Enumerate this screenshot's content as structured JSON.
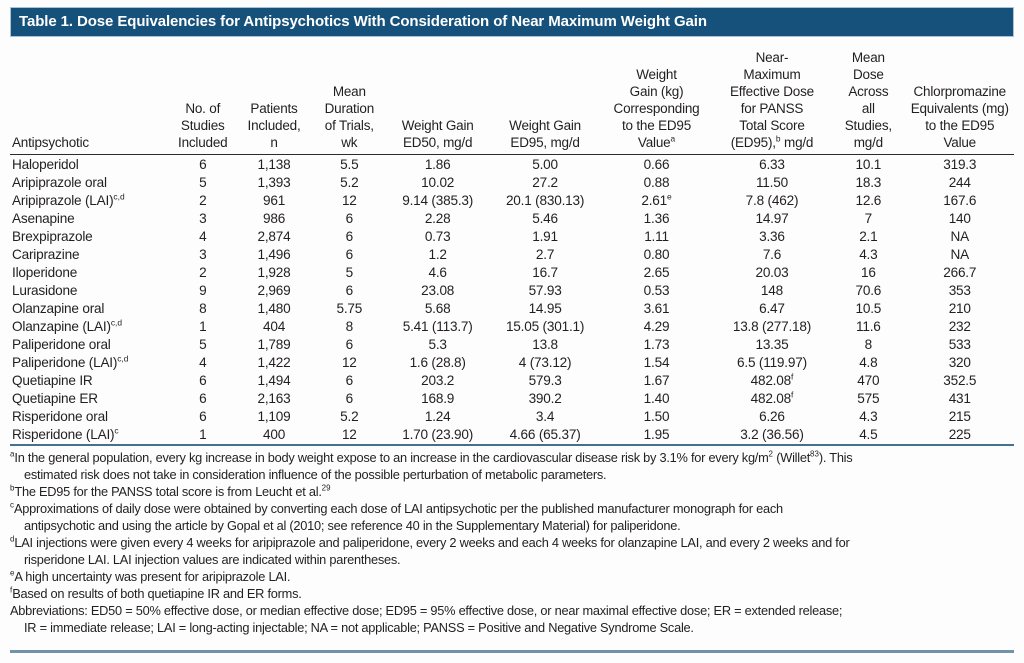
{
  "colors": {
    "title_bg": "#15517a",
    "title_border": "#a9c3d8",
    "title_text": "#ffffff",
    "body_text": "#231f20",
    "rule_dark": "#2b2b2b",
    "rule_blue": "#47708f",
    "bottom_bar": "#7292a7"
  },
  "table": {
    "title": "Table 1. Dose Equivalencies for Antipsychotics With Consideration of Near Maximum Weight Gain",
    "columns": [
      "Antipsychotic",
      "No. of\nStudies\nIncluded",
      "Patients\nIncluded,\nn",
      "Mean\nDuration\nof Trials,\nwk",
      "Weight Gain\nED50, mg/d",
      "Weight Gain\nED95, mg/d",
      "Weight\nGain (kg)\nCorresponding\nto the ED95\nValue^{a}",
      "Near-\nMaximum\nEffective Dose\nfor PANSS\nTotal Score\n(ED95),^{b} mg/d",
      "Mean\nDose\nAcross\nall\nStudies,\nmg/d",
      "Chlorpromazine\nEquivalents (mg)\nto the ED95\nValue"
    ],
    "rows": [
      [
        "Haloperidol",
        "6",
        "1,138",
        "5.5",
        "1.86",
        "5.00",
        "0.66",
        "6.33",
        "10.1",
        "319.3"
      ],
      [
        "Aripiprazole oral",
        "5",
        "1,393",
        "5.2",
        "10.02",
        "27.2",
        "0.88",
        "11.50",
        "18.3",
        "244"
      ],
      [
        "Aripiprazole (LAI)^{c,d}",
        "2",
        "961",
        "12",
        "9.14 (385.3)",
        "20.1 (830.13)",
        "2.61^{e}",
        "7.8 (462)",
        "12.6",
        "167.6"
      ],
      [
        "Asenapine",
        "3",
        "986",
        "6",
        "2.28",
        "5.46",
        "1.36",
        "14.97",
        "7",
        "140"
      ],
      [
        "Brexpiprazole",
        "4",
        "2,874",
        "6",
        "0.73",
        "1.91",
        "1.11",
        "3.36",
        "2.1",
        "NA"
      ],
      [
        "Cariprazine",
        "3",
        "1,496",
        "6",
        "1.2",
        "2.7",
        "0.80",
        "7.6",
        "4.3",
        "NA"
      ],
      [
        "Iloperidone",
        "2",
        "1,928",
        "5",
        "4.6",
        "16.7",
        "2.65",
        "20.03",
        "16",
        "266.7"
      ],
      [
        "Lurasidone",
        "9",
        "2,969",
        "6",
        "23.08",
        "57.93",
        "0.53",
        "148",
        "70.6",
        "353"
      ],
      [
        "Olanzapine oral",
        "8",
        "1,480",
        "5.75",
        "5.68",
        "14.95",
        "3.61",
        "6.47",
        "10.5",
        "210"
      ],
      [
        "Olanzapine (LAI)^{c,d}",
        "1",
        "404",
        "8",
        "5.41 (113.7)",
        "15.05 (301.1)",
        "4.29",
        "13.8 (277.18)",
        "11.6",
        "232"
      ],
      [
        "Paliperidone oral",
        "5",
        "1,789",
        "6",
        "5.3",
        "13.8",
        "1.73",
        "13.35",
        "8",
        "533"
      ],
      [
        "Paliperidone (LAI)^{c,d}",
        "4",
        "1,422",
        "12",
        "1.6 (28.8)",
        "4 (73.12)",
        "1.54",
        "6.5 (119.97)",
        "4.8",
        "320"
      ],
      [
        "Quetiapine IR",
        "6",
        "1,494",
        "6",
        "203.2",
        "579.3",
        "1.67",
        "482.08^{f}",
        "470",
        "352.5"
      ],
      [
        "Quetiapine ER",
        "6",
        "2,163",
        "6",
        "168.9",
        "390.2",
        "1.40",
        "482.08^{f}",
        "575",
        "431"
      ],
      [
        "Risperidone oral",
        "6",
        "1,109",
        "5.2",
        "1.24",
        "3.4",
        "1.50",
        "6.26",
        "4.3",
        "215"
      ],
      [
        "Risperidone (LAI)^{c}",
        "1",
        "400",
        "12",
        "1.70 (23.90)",
        "4.66 (65.37)",
        "1.95",
        "3.2 (36.56)",
        "4.5",
        "225"
      ]
    ]
  },
  "footnotes": [
    "^{a}In the general population, every kg increase in body weight expose to an increase in the cardiovascular disease risk by 3.1% for every kg/m^{2} (Willet^{83}). This\nestimated risk does not take in consideration influence of the possible perturbation of metabolic parameters.",
    "^{b}The ED95 for the PANSS total score is from Leucht et al.^{29}",
    "^{c}Approximations of daily dose were obtained by converting each dose of LAI antipsychotic per the published manufacturer monograph for each\nantipsychotic and using the article by Gopal et al (2010; see reference 40 in the Supplementary Material) for paliperidone.",
    "^{d}LAI injections were given every 4 weeks for aripiprazole and paliperidone, every 2 weeks and each 4 weeks for olanzapine LAI, and every 2 weeks and for\nrisperidone LAI. LAI injection values are indicated within parentheses.",
    "^{e}A high uncertainty was present for aripiprazole LAI.",
    "^{f}Based on results of both quetiapine IR and ER forms.",
    "Abbreviations: ED50 = 50% effective dose, or median effective dose; ED95 = 95% effective dose, or near maximal effective dose; ER = extended release;\nIR = immediate release; LAI = long-acting injectable; NA = not applicable; PANSS = Positive and Negative Syndrome Scale."
  ]
}
